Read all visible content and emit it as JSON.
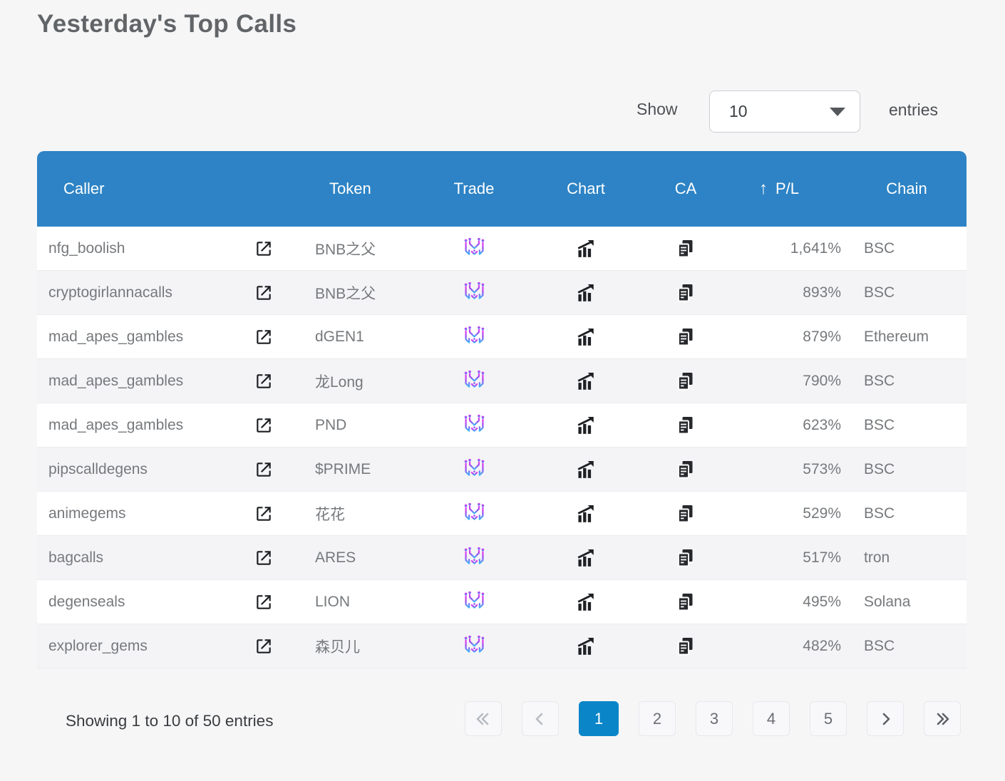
{
  "page": {
    "title": "Yesterday's Top Calls"
  },
  "controls": {
    "show_label": "Show",
    "selected_page_size": "10",
    "entries_label": "entries"
  },
  "table": {
    "header": {
      "caller": "Caller",
      "token": "Token",
      "trade": "Trade",
      "chart": "Chart",
      "ca": "CA",
      "pl_sort_arrow": "↑",
      "pl": "P/L",
      "chain": "Chain"
    },
    "icon_names": {
      "caller_link": "open-in-new-icon",
      "trade": "maestro-bot-icon",
      "chart": "bar-chart-trend-icon",
      "ca": "copy-contract-icon"
    },
    "rows": [
      {
        "caller": "nfg_boolish",
        "token": "BNB之父",
        "pl": "1,641%",
        "chain": "BSC"
      },
      {
        "caller": "cryptogirlannacalls",
        "token": "BNB之父",
        "pl": "893%",
        "chain": "BSC"
      },
      {
        "caller": "mad_apes_gambles",
        "token": "dGEN1",
        "pl": "879%",
        "chain": "Ethereum"
      },
      {
        "caller": "mad_apes_gambles",
        "token": "龙Long",
        "pl": "790%",
        "chain": "BSC"
      },
      {
        "caller": "mad_apes_gambles",
        "token": "PND",
        "pl": "623%",
        "chain": "BSC"
      },
      {
        "caller": "pipscalldegens",
        "token": "$PRIME",
        "pl": "573%",
        "chain": "BSC"
      },
      {
        "caller": "animegems",
        "token": "花花",
        "pl": "529%",
        "chain": "BSC"
      },
      {
        "caller": "bagcalls",
        "token": "ARES",
        "pl": "517%",
        "chain": "tron"
      },
      {
        "caller": "degenseals",
        "token": "LION",
        "pl": "495%",
        "chain": "Solana"
      },
      {
        "caller": "explorer_gems",
        "token": "森贝儿",
        "pl": "482%",
        "chain": "BSC"
      }
    ]
  },
  "footer": {
    "summary": "Showing 1 to 10 of 50 entries",
    "pagination": {
      "first_label": "«",
      "previous_label": "‹",
      "pages": [
        "1",
        "2",
        "3",
        "4",
        "5"
      ],
      "active_page": "1",
      "next_label": "›",
      "last_label": "»"
    }
  },
  "colors": {
    "header_bg": "#2d83c5",
    "active_page_bg": "#0a85c7",
    "row_alt_bg": "#f4f4f6",
    "body_text": "#76797c",
    "logo_gradient_top": "#ea3bf1",
    "logo_gradient_bottom": "#3fb9f7"
  }
}
